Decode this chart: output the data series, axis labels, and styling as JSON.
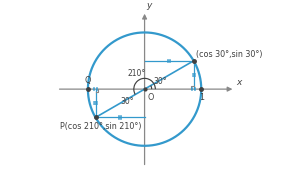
{
  "background": "#ffffff",
  "circle_color": "#3399cc",
  "circle_lw": 1.6,
  "axis_color": "#888888",
  "line_color": "#3399cc",
  "cos30": 0.866,
  "sin30": 0.5,
  "cos210": -0.866,
  "sin210": -0.5,
  "tick_color": "#3399cc",
  "text_color": "#404040",
  "label_30_text": "(cos 30°,sin 30°)",
  "label_210_text": "P(cos 210°,sin 210°)",
  "label_Q": "Q",
  "label_O": "O",
  "label_1": "1",
  "label_x": "x",
  "label_y": "y",
  "label_210": "210°",
  "label_30arc": "30°",
  "label_30ref": "30°",
  "xlim": [
    -1.65,
    1.7
  ],
  "ylim": [
    -1.45,
    1.45
  ]
}
